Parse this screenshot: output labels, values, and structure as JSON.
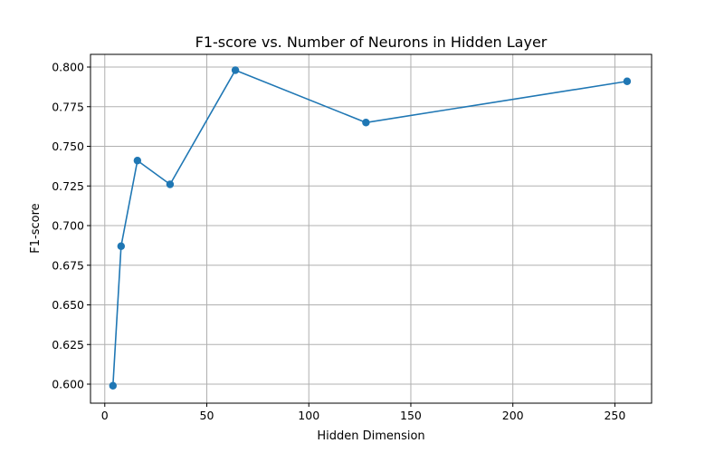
{
  "chart_data": {
    "type": "line",
    "title": "F1-score vs. Number of Neurons in Hidden Layer",
    "xlabel": "Hidden Dimension",
    "ylabel": "F1-score",
    "xlim": [
      -7,
      268
    ],
    "ylim": [
      0.588,
      0.808
    ],
    "xticks": [
      0,
      50,
      100,
      150,
      200,
      250
    ],
    "yticks": [
      0.6,
      0.625,
      0.65,
      0.675,
      0.7,
      0.725,
      0.75,
      0.775,
      0.8
    ],
    "ytick_labels": [
      "0.600",
      "0.625",
      "0.650",
      "0.675",
      "0.700",
      "0.725",
      "0.750",
      "0.775",
      "0.800"
    ],
    "xtick_labels": [
      "0",
      "50",
      "100",
      "150",
      "200",
      "250"
    ],
    "grid": true,
    "series": [
      {
        "color": "#1f77b4",
        "marker": "circle",
        "x": [
          4,
          8,
          16,
          32,
          64,
          128,
          256
        ],
        "y": [
          0.599,
          0.687,
          0.741,
          0.726,
          0.798,
          0.765,
          0.791
        ]
      }
    ]
  }
}
